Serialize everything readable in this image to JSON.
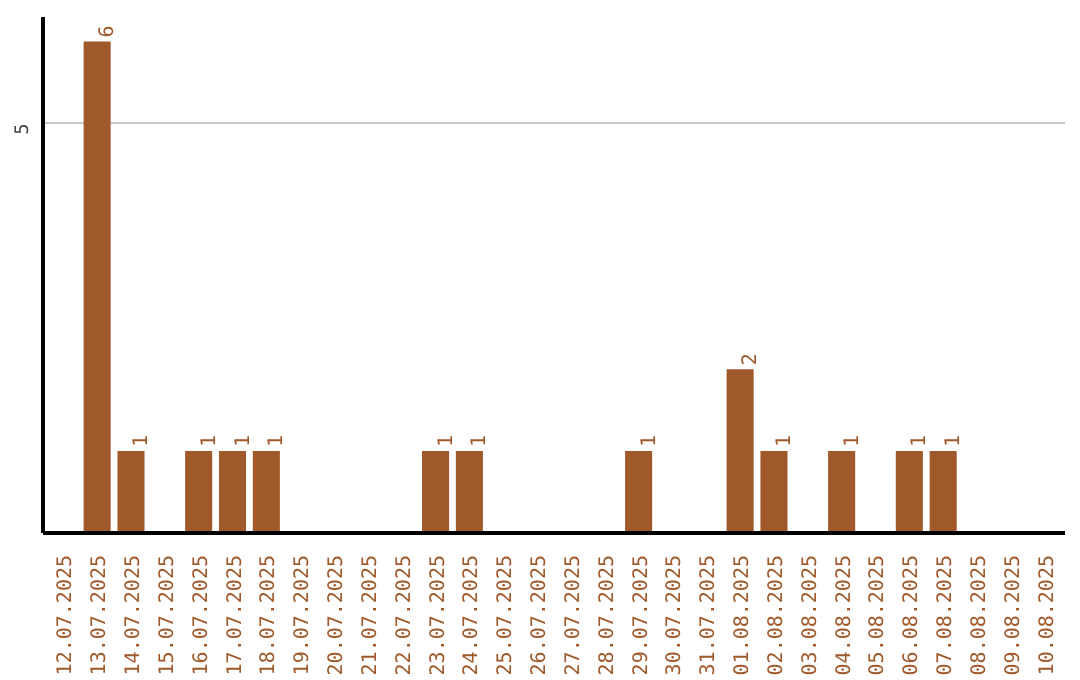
{
  "chart_data": {
    "type": "bar",
    "categories": [
      "12.07.2025",
      "13.07.2025",
      "14.07.2025",
      "15.07.2025",
      "16.07.2025",
      "17.07.2025",
      "18.07.2025",
      "19.07.2025",
      "20.07.2025",
      "21.07.2025",
      "22.07.2025",
      "23.07.2025",
      "24.07.2025",
      "25.07.2025",
      "26.07.2025",
      "27.07.2025",
      "28.07.2025",
      "29.07.2025",
      "30.07.2025",
      "31.07.2025",
      "01.08.2025",
      "02.08.2025",
      "03.08.2025",
      "04.08.2025",
      "05.08.2025",
      "06.08.2025",
      "07.08.2025",
      "08.08.2025",
      "09.08.2025",
      "10.08.2025"
    ],
    "values": [
      0,
      6,
      1,
      0,
      1,
      1,
      1,
      0,
      0,
      0,
      0,
      1,
      1,
      0,
      0,
      0,
      0,
      1,
      0,
      0,
      2,
      1,
      0,
      1,
      0,
      1,
      1,
      0,
      0,
      0
    ],
    "value_labels": [
      null,
      "6",
      "1",
      null,
      "1",
      "1",
      "1",
      null,
      null,
      null,
      null,
      "1",
      "1",
      null,
      null,
      null,
      null,
      "1",
      null,
      null,
      "2",
      "1",
      null,
      "1",
      null,
      "1",
      "1",
      null,
      null,
      null
    ],
    "color": "#a0592a",
    "ylim": [
      0,
      6.3
    ],
    "yticks": [
      5
    ],
    "grid": "y"
  }
}
